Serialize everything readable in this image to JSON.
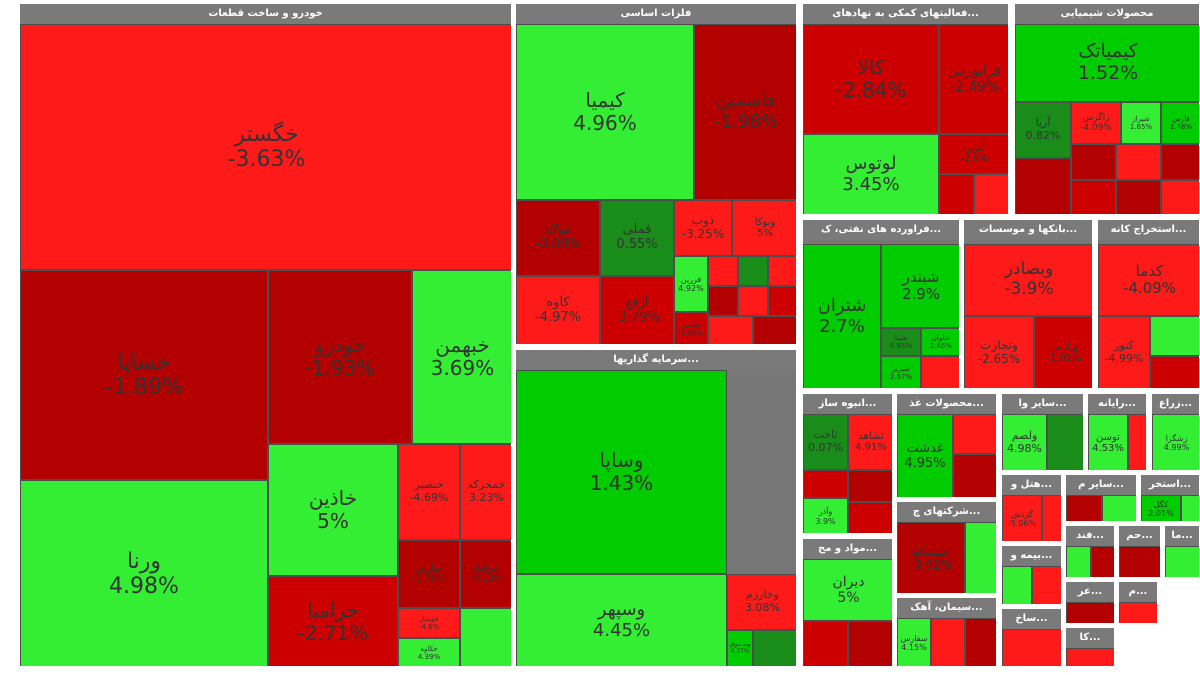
{
  "colors": {
    "strong_negative": "#cc0000",
    "negative": "#ff1a1a",
    "weak_negative": "#b30000",
    "strong_positive": "#33ee33",
    "positive": "#00cc00",
    "weak_positive": "#1a8c1a",
    "sector_header": "#7a7a7a",
    "background": "#777777"
  },
  "chart_data": {
    "type": "treemap",
    "sectors": [
      {
        "id": "s1",
        "name": "خودرو و ساخت قطعات",
        "items": [
          {
            "name": "خگستر",
            "change": "-3.63%"
          },
          {
            "name": "خساپا",
            "change": "-1.89%"
          },
          {
            "name": "خودرو",
            "change": "-1.93%"
          },
          {
            "name": "خبهمن",
            "change": "3.69%"
          },
          {
            "name": "ورنا",
            "change": "4.98%"
          },
          {
            "name": "خاذین",
            "change": "5%"
          },
          {
            "name": "حرامیا",
            "change": "-2.71%"
          },
          {
            "name": "خمحرکه",
            "change": "3.23%"
          },
          {
            "name": "خنصیر",
            "change": "-4.69%"
          },
          {
            "name": "خپارس",
            "change": "-1.76%"
          },
          {
            "name": "خزامیا",
            "change": "-4.18%"
          },
          {
            "name": "خوساز",
            "change": "-4.8%"
          },
          {
            "name": "خکاوه",
            "change": "4.39%"
          }
        ]
      },
      {
        "id": "s2",
        "name": "فلزات اساسی",
        "items": [
          {
            "name": "کیمیا",
            "change": "4.96%"
          },
          {
            "name": "فاسمین",
            "change": "-1.98%"
          },
          {
            "name": "فولاد",
            "change": "-0.09%"
          },
          {
            "name": "فملی",
            "change": "0.55%"
          },
          {
            "name": "ذوب",
            "change": "-3.25%"
          },
          {
            "name": "ونوکا",
            "change": "5%"
          },
          {
            "name": "کاوه",
            "change": "-4.97%"
          },
          {
            "name": "ارفع",
            "change": "-3.79%"
          },
          {
            "name": "فزرین",
            "change": "4.92%"
          },
          {
            "name": "فخاس",
            "change": "-1.68%"
          }
        ]
      },
      {
        "id": "s3",
        "name": "...فعالیتهای کمکی به نهادهای",
        "items": [
          {
            "name": "کالا",
            "change": "-2.84%"
          },
          {
            "name": "فرابورس",
            "change": "-2.49%"
          },
          {
            "name": "لوتوس",
            "change": "3.45%"
          },
          {
            "name": "آفرین",
            "change": "-2.8%"
          }
        ]
      },
      {
        "id": "s4",
        "name": "محصولات شیمیایی",
        "items": [
          {
            "name": "کیمیاتک",
            "change": "1.52%"
          },
          {
            "name": "آریا",
            "change": "0.82%"
          },
          {
            "name": "زاگرس",
            "change": "-4.09%"
          },
          {
            "name": "شیراز",
            "change": "1.65%"
          },
          {
            "name": "فارس",
            "change": "1.48%"
          }
        ]
      },
      {
        "id": "s5",
        "name": "...فراورده های نفتی، ک",
        "items": [
          {
            "name": "شتران",
            "change": "2.7%"
          },
          {
            "name": "شبندر",
            "change": "2.9%"
          },
          {
            "name": "شپنا",
            "change": "0.85%"
          },
          {
            "name": "شاوان",
            "change": "2.65%"
          },
          {
            "name": "شبریز",
            "change": "2.67%"
          }
        ]
      },
      {
        "id": "s6",
        "name": "...بانکها و موسسات",
        "items": [
          {
            "name": "وبصادر",
            "change": "-3.9%"
          },
          {
            "name": "وتجارت",
            "change": "-2.65%"
          },
          {
            "name": "وپارس",
            "change": "-1.01%"
          }
        ]
      },
      {
        "id": "s7",
        "name": "...استخراج کانه",
        "items": [
          {
            "name": "کدما",
            "change": "-4.09%"
          },
          {
            "name": "کنور",
            "change": "-4.99%"
          }
        ]
      },
      {
        "id": "s8",
        "name": "...انبوه ساز",
        "items": [
          {
            "name": "ثاخت",
            "change": "0.07%"
          },
          {
            "name": "ثشاهد",
            "change": "4.91%"
          },
          {
            "name": "وآذر",
            "change": "3.9%"
          }
        ]
      },
      {
        "id": "s9",
        "name": "...محصولات غذ",
        "items": [
          {
            "name": "غدشت",
            "change": "4.95%"
          }
        ]
      },
      {
        "id": "s10",
        "name": "...سایر وا",
        "items": [
          {
            "name": "ولصم",
            "change": "4.98%"
          }
        ]
      },
      {
        "id": "s11",
        "name": "...رایانه",
        "items": [
          {
            "name": "توسن",
            "change": "4.53%"
          }
        ]
      },
      {
        "id": "s12",
        "name": "...زراع",
        "items": [
          {
            "name": "زشگزا",
            "change": "4.99%"
          }
        ]
      },
      {
        "id": "s13",
        "name": "...شرکتهای چ",
        "items": [
          {
            "name": "سیسکو",
            "change": "-0.92%"
          }
        ]
      },
      {
        "id": "s14",
        "name": "...هتل و",
        "items": [
          {
            "name": "گردش",
            "change": "-5.06%"
          }
        ]
      },
      {
        "id": "s15",
        "name": "...سایر م",
        "items": []
      },
      {
        "id": "s16",
        "name": "...استخر",
        "items": [
          {
            "name": "کگل",
            "change": "2.01%"
          }
        ]
      },
      {
        "id": "s17",
        "name": "...مواد و مح",
        "items": [
          {
            "name": "دیران",
            "change": "5%"
          }
        ]
      },
      {
        "id": "s18",
        "name": "...سیمان، آهک",
        "items": [
          {
            "name": "سفارس",
            "change": "4.15%"
          }
        ]
      },
      {
        "id": "s19",
        "name": "...سرمایه گذاریها",
        "items": [
          {
            "name": "وساپا",
            "change": "1.43%"
          },
          {
            "name": "وسپهر",
            "change": "4.45%"
          },
          {
            "name": "وخارزم",
            "change": "3.08%"
          },
          {
            "name": "وصندوق",
            "change": "4.77%"
          }
        ]
      },
      {
        "id": "s20",
        "name": "...بیمه و",
        "items": []
      },
      {
        "id": "s21",
        "name": "...ساخ",
        "items": []
      },
      {
        "id": "s22",
        "name": "...فند",
        "items": []
      },
      {
        "id": "s23",
        "name": "...حم",
        "items": []
      },
      {
        "id": "s24",
        "name": "...ما",
        "items": []
      },
      {
        "id": "s25",
        "name": "...عر",
        "items": []
      },
      {
        "id": "s26",
        "name": "...م",
        "items": []
      },
      {
        "id": "s27",
        "name": "...کا",
        "items": []
      }
    ]
  }
}
